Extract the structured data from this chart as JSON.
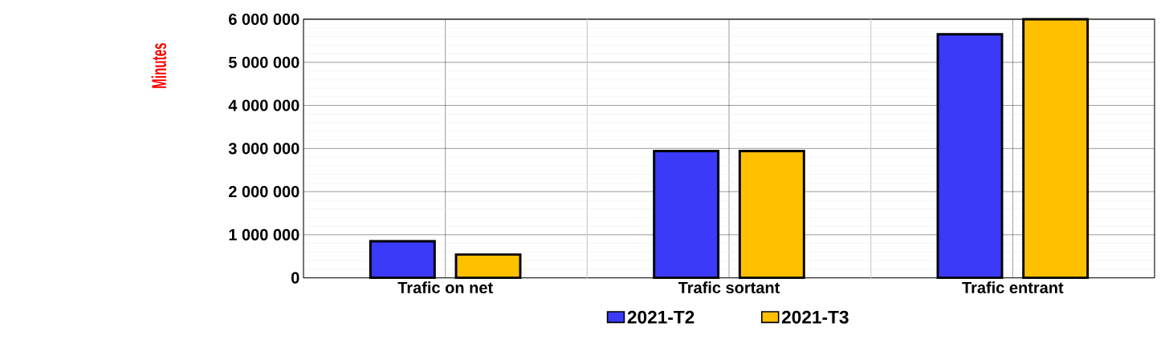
{
  "chart_data": {
    "type": "bar",
    "ylabel": "Minutes",
    "categories": [
      "Trafic on net",
      "Trafic sortant",
      "Trafic entrant"
    ],
    "series": [
      {
        "name": "2021-T2",
        "color": "#3a3af8",
        "values": [
          850000,
          2940000,
          5650000
        ]
      },
      {
        "name": "2021-T3",
        "color": "#ffc000",
        "values": [
          540000,
          2940000,
          6000000
        ]
      }
    ],
    "ylim": [
      0,
      6000000
    ],
    "yticks": [
      {
        "value": 0,
        "label": "0"
      },
      {
        "value": 1000000,
        "label": "1 000 000"
      },
      {
        "value": 2000000,
        "label": "2 000 000"
      },
      {
        "value": 3000000,
        "label": "3 000 000"
      },
      {
        "value": 4000000,
        "label": "4 000 000"
      },
      {
        "value": 5000000,
        "label": "5 000 000"
      },
      {
        "value": 6000000,
        "label": "6 000 000"
      }
    ],
    "grid": true,
    "legend": "bottom"
  }
}
